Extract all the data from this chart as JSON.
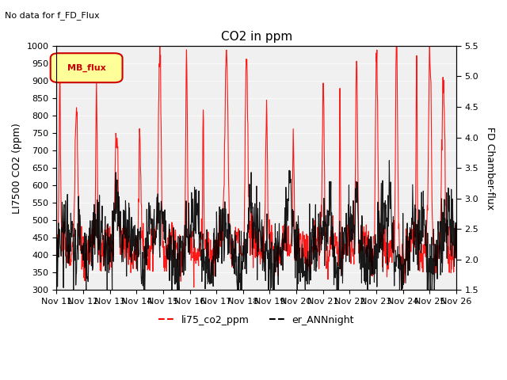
{
  "title": "CO2 in ppm",
  "subtitle": "No data for f_FD_Flux",
  "ylabel_left": "LI7500 CO2 (ppm)",
  "ylabel_right": "FD Chamber-flux",
  "ylim_left": [
    300,
    1000
  ],
  "ylim_right": [
    1.5,
    5.5
  ],
  "yticks_left": [
    300,
    350,
    400,
    450,
    500,
    550,
    600,
    650,
    700,
    750,
    800,
    850,
    900,
    950,
    1000
  ],
  "yticks_right": [
    1.5,
    2.0,
    2.5,
    3.0,
    3.5,
    4.0,
    4.5,
    5.0,
    5.5
  ],
  "xtick_labels": [
    "Nov 11",
    "Nov 12",
    "Nov 13",
    "Nov 14",
    "Nov 15",
    "Nov 16",
    "Nov 17",
    "Nov 18",
    "Nov 19",
    "Nov 20",
    "Nov 21",
    "Nov 22",
    "Nov 23",
    "Nov 24",
    "Nov 25",
    "Nov 26"
  ],
  "legend_label1": "li75_co2_ppm",
  "legend_label2": "er_ANNnight",
  "legend_box_label": "MB_flux",
  "line1_color": "#FF0000",
  "line2_color": "#000000",
  "background_color": "#E8E8E8",
  "plot_bg_color": "#F0F0F0"
}
